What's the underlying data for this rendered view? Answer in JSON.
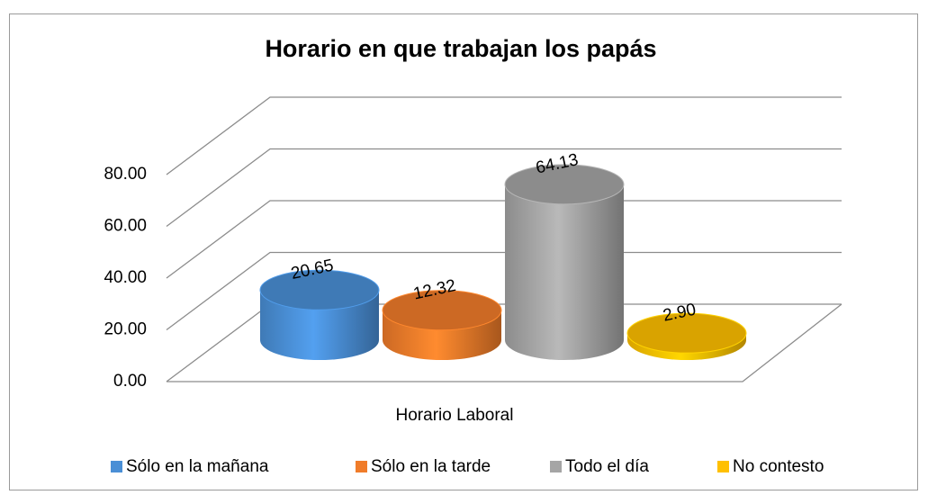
{
  "chart_data": {
    "type": "bar3d",
    "title": "Horario en que trabajan los papás",
    "categories": [
      "Horario Laboral"
    ],
    "series": [
      {
        "name": "Sólo en la mañana",
        "color": "#4a8fd6",
        "values": [
          20.65
        ],
        "value_labels": [
          "20.65"
        ]
      },
      {
        "name": "Sólo en la tarde",
        "color": "#f07c2a",
        "values": [
          12.32
        ],
        "value_labels": [
          "12.32"
        ]
      },
      {
        "name": "Todo el día",
        "color": "#a5a5a5",
        "values": [
          64.13
        ],
        "value_labels": [
          "64.13"
        ]
      },
      {
        "name": "No contesto",
        "color": "#ffc000",
        "values": [
          2.9
        ],
        "value_labels": [
          "2.90"
        ]
      }
    ],
    "ylim": [
      0,
      80
    ],
    "yticks": [
      {
        "value": 0,
        "label": "0.00"
      },
      {
        "value": 20,
        "label": "20.00"
      },
      {
        "value": 40,
        "label": "40.00"
      },
      {
        "value": 60,
        "label": "60.00"
      },
      {
        "value": 80,
        "label": "80.00"
      }
    ],
    "grid": true,
    "legend": "bottom"
  }
}
